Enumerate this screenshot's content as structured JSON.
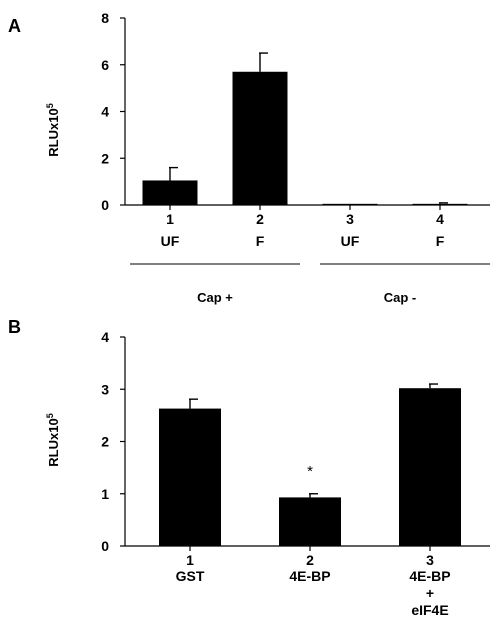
{
  "chart_data": [
    {
      "type": "bar",
      "panel_label": "A",
      "ylabel": {
        "base": "RLUx10",
        "exp": "5"
      },
      "ylim": [
        0,
        8
      ],
      "yticks": [
        "0",
        "2",
        "4",
        "6",
        "8"
      ],
      "categories": [
        {
          "number": "1",
          "label": "UF"
        },
        {
          "number": "2",
          "label": "F"
        },
        {
          "number": "3",
          "label": "UF"
        },
        {
          "number": "4",
          "label": "F"
        }
      ],
      "values": [
        1.05,
        5.7,
        0.05,
        0.05
      ],
      "errors": [
        0.55,
        0.8,
        0.0,
        0.04
      ],
      "groups": [
        {
          "label": "Cap +",
          "members": [
            0,
            1
          ]
        },
        {
          "label": "Cap -",
          "members": [
            2,
            3
          ]
        }
      ],
      "grid": false,
      "colors": {
        "bar": "#000000"
      }
    },
    {
      "type": "bar",
      "panel_label": "B",
      "ylabel": {
        "base": "RLUx10",
        "exp": "5"
      },
      "ylim": [
        0,
        4
      ],
      "yticks": [
        "0",
        "1",
        "2",
        "3",
        "4"
      ],
      "categories": [
        {
          "number": "1",
          "lines": [
            "GST"
          ]
        },
        {
          "number": "2",
          "lines": [
            "4E-BP"
          ]
        },
        {
          "number": "3",
          "lines": [
            "4E-BP",
            "+",
            "eIF4E"
          ]
        }
      ],
      "values": [
        2.63,
        0.93,
        3.02
      ],
      "errors": [
        0.18,
        0.07,
        0.08
      ],
      "annotations": [
        {
          "category": 1,
          "text": "*"
        }
      ],
      "grid": false,
      "colors": {
        "bar": "#000000"
      }
    }
  ]
}
